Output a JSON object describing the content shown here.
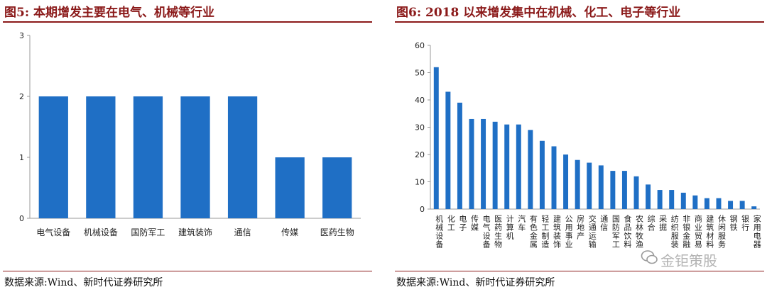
{
  "left": {
    "title": "图5:   本期增发主要在电气、机械等行业",
    "source": "数据来源:Wind、新时代证券研究所"
  },
  "right": {
    "title": "图6:   2018 以来增发集中在机械、化工、电子等行业",
    "source": "数据来源:Wind、新时代证券研究所"
  },
  "watermark": "金钜策股",
  "colors": {
    "bar": "#1f6fc5",
    "title": "#8b1a1a"
  },
  "chart_data": [
    {
      "type": "bar",
      "title": "本期增发主要在电气、机械等行业",
      "categories": [
        "电气设备",
        "机械设备",
        "国防军工",
        "建筑装饰",
        "通信",
        "传媒",
        "医药生物"
      ],
      "values": [
        2,
        2,
        2,
        2,
        2,
        1,
        1
      ],
      "ylim": [
        0,
        3
      ],
      "yticks": [
        0,
        1,
        2,
        3
      ],
      "grid": false
    },
    {
      "type": "bar",
      "title": "2018 以来增发集中在机械、化工、电子等行业",
      "categories": [
        "机械设备",
        "化工",
        "电子",
        "传媒",
        "电气设备",
        "医药生物",
        "计算机",
        "汽车",
        "有色金属",
        "轻工制造",
        "建筑装饰",
        "公用事业",
        "房地产",
        "交通运输",
        "通信",
        "国防军工",
        "食品饮料",
        "农林牧渔",
        "综合",
        "采掘",
        "纺织服装",
        "非银金融",
        "商业贸易",
        "建筑材料",
        "休闲服务",
        "钢铁",
        "银行",
        "家用电器"
      ],
      "values": [
        52,
        43,
        39,
        33,
        33,
        32,
        31,
        31,
        29,
        25,
        23,
        20,
        18,
        17,
        16,
        14,
        14,
        12,
        9,
        7,
        7,
        6,
        5,
        4,
        4,
        3,
        3,
        1
      ],
      "ylim": [
        0,
        60
      ],
      "yticks": [
        0,
        10,
        20,
        30,
        40,
        50,
        60
      ],
      "grid": false
    }
  ]
}
